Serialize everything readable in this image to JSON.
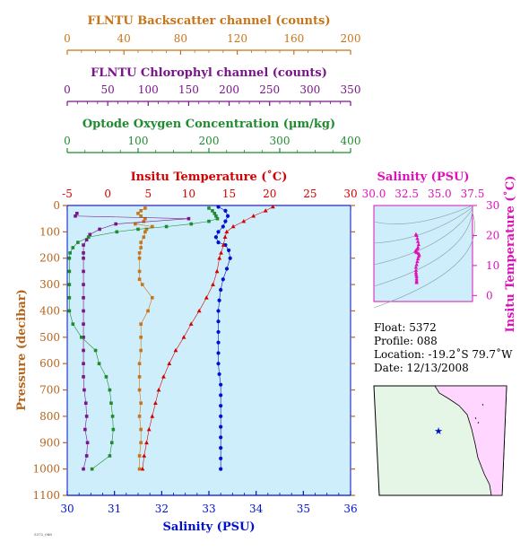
{
  "colors": {
    "backscatter": "#c87418",
    "chlorophyll": "#7a148a",
    "oxygen": "#1f8a2e",
    "temperature": "#d40000",
    "salinity": "#0010d0",
    "pressure": "#b5651d",
    "ts_accent": "#e010b8",
    "plot_bg": "#cdeefa",
    "map_land": "#ffd6ff",
    "map_ocean": "#e6f6e6"
  },
  "axes": {
    "backscatter": {
      "title": "FLNTU Backscatter channel (counts)",
      "ticks": [
        "0",
        "40",
        "80",
        "120",
        "160",
        "200"
      ]
    },
    "chlorophyll": {
      "title": "FLNTU Chlorophyl channel (counts)",
      "ticks": [
        "0",
        "50",
        "100",
        "150",
        "200",
        "250",
        "300",
        "350"
      ]
    },
    "oxygen": {
      "title": "Optode Oxygen Concentration (µm/kg)",
      "ticks": [
        "0",
        "100",
        "200",
        "300",
        "400"
      ]
    },
    "temperature": {
      "title": "Insitu Temperature (˚C)",
      "ticks": [
        "-5",
        "0",
        "5",
        "10",
        "15",
        "20",
        "25",
        "30"
      ]
    },
    "salinity": {
      "title": "Salinity (PSU)",
      "ticks": [
        "30",
        "31",
        "32",
        "33",
        "34",
        "35",
        "36"
      ]
    },
    "pressure": {
      "title": "Pressure (decibar)",
      "ticks": [
        "0",
        "100",
        "200",
        "300",
        "400",
        "500",
        "600",
        "700",
        "800",
        "900",
        "1000",
        "1100"
      ]
    },
    "ts_salinity": {
      "title": "Salinity (PSU)",
      "ticks": [
        "30.0",
        "32.5",
        "35.0",
        "37.5"
      ]
    },
    "ts_temperature": {
      "title": "Insitu Temperature (˚C)",
      "ticks": [
        "0",
        "10",
        "20",
        "30"
      ]
    }
  },
  "info": {
    "float": "Float:  5372",
    "profile": "Profile:  088",
    "location": "Location:  -19.2˚S  79.7˚W",
    "date": "Date:  12/13/2008"
  },
  "footer_tag": "5372_088",
  "map": {
    "marker_icon": "star-icon"
  },
  "chart_data": [
    {
      "type": "scatter",
      "title": "",
      "ylabel": "Pressure (decibar)",
      "ylim": [
        1100,
        0
      ],
      "grid": false,
      "series": [
        {
          "name": "Salinity (PSU)",
          "x_axis": "salinity",
          "xlim": [
            30,
            36
          ],
          "marker": "circle",
          "points": [
            [
              33.2,
              5
            ],
            [
              33.35,
              20
            ],
            [
              33.4,
              40
            ],
            [
              33.35,
              60
            ],
            [
              33.3,
              80
            ],
            [
              33.2,
              100
            ],
            [
              33.15,
              120
            ],
            [
              33.2,
              140
            ],
            [
              33.35,
              150
            ],
            [
              33.42,
              170
            ],
            [
              33.45,
              200
            ],
            [
              33.38,
              240
            ],
            [
              33.3,
              280
            ],
            [
              33.25,
              320
            ],
            [
              33.22,
              360
            ],
            [
              33.2,
              400
            ],
            [
              33.2,
              440
            ],
            [
              33.2,
              480
            ],
            [
              33.2,
              520
            ],
            [
              33.2,
              560
            ],
            [
              33.2,
              600
            ],
            [
              33.22,
              640
            ],
            [
              33.25,
              680
            ],
            [
              33.25,
              720
            ],
            [
              33.25,
              760
            ],
            [
              33.25,
              800
            ],
            [
              33.25,
              840
            ],
            [
              33.25,
              880
            ],
            [
              33.25,
              920
            ],
            [
              33.25,
              960
            ],
            [
              33.25,
              1000
            ]
          ]
        },
        {
          "name": "Insitu Temperature (˚C)",
          "x_axis": "temperature",
          "xlim": [
            -5,
            30
          ],
          "marker": "triangle",
          "points": [
            [
              20.4,
              5
            ],
            [
              19.5,
              20
            ],
            [
              18,
              40
            ],
            [
              16.8,
              60
            ],
            [
              15.5,
              80
            ],
            [
              14.7,
              100
            ],
            [
              14.5,
              120
            ],
            [
              14.3,
              150
            ],
            [
              14,
              180
            ],
            [
              13.8,
              200
            ],
            [
              13.5,
              250
            ],
            [
              13,
              300
            ],
            [
              12.2,
              350
            ],
            [
              11.3,
              400
            ],
            [
              10.3,
              450
            ],
            [
              9.4,
              500
            ],
            [
              8.4,
              550
            ],
            [
              7.6,
              600
            ],
            [
              6.9,
              650
            ],
            [
              6.3,
              700
            ],
            [
              5.9,
              750
            ],
            [
              5.5,
              800
            ],
            [
              5.1,
              850
            ],
            [
              4.8,
              900
            ],
            [
              4.5,
              950
            ],
            [
              4.3,
              1000
            ]
          ]
        },
        {
          "name": "FLNTU Backscatter channel (counts)",
          "x_axis": "backscatter",
          "xlim": [
            0,
            200
          ],
          "marker": "square",
          "points": [
            [
              55,
              10
            ],
            [
              52,
              20
            ],
            [
              50,
              30
            ],
            [
              52,
              40
            ],
            [
              55,
              50
            ],
            [
              54,
              60
            ],
            [
              48,
              70
            ],
            [
              60,
              80
            ],
            [
              56,
              90
            ],
            [
              55,
              100
            ],
            [
              54,
              120
            ],
            [
              52,
              140
            ],
            [
              52,
              160
            ],
            [
              51,
              180
            ],
            [
              51,
              200
            ],
            [
              51,
              250
            ],
            [
              51,
              280
            ],
            [
              53,
              300
            ],
            [
              60,
              350
            ],
            [
              57,
              400
            ],
            [
              52,
              450
            ],
            [
              52,
              500
            ],
            [
              52,
              550
            ],
            [
              51,
              600
            ],
            [
              51,
              650
            ],
            [
              51,
              700
            ],
            [
              52,
              750
            ],
            [
              51,
              800
            ],
            [
              52,
              850
            ],
            [
              52,
              900
            ],
            [
              51,
              950
            ],
            [
              51,
              1000
            ]
          ]
        },
        {
          "name": "FLNTU Chlorophyl channel (counts)",
          "x_axis": "chlorophyll",
          "xlim": [
            0,
            350
          ],
          "marker": "square",
          "points": [
            [
              12,
              30
            ],
            [
              10,
              40
            ],
            [
              150,
              50
            ],
            [
              60,
              70
            ],
            [
              40,
              90
            ],
            [
              28,
              110
            ],
            [
              24,
              130
            ],
            [
              20,
              150
            ],
            [
              20,
              180
            ],
            [
              20,
              200
            ],
            [
              20,
              250
            ],
            [
              20,
              300
            ],
            [
              20,
              350
            ],
            [
              20,
              400
            ],
            [
              20,
              450
            ],
            [
              20,
              500
            ],
            [
              20,
              550
            ],
            [
              20,
              600
            ],
            [
              20,
              650
            ],
            [
              21,
              700
            ],
            [
              23,
              750
            ],
            [
              24,
              800
            ],
            [
              22,
              850
            ],
            [
              25,
              900
            ],
            [
              24,
              950
            ],
            [
              20,
              1000
            ]
          ]
        },
        {
          "name": "Optode Oxygen Concentration (µm/kg)",
          "x_axis": "oxygen",
          "xlim": [
            0,
            400
          ],
          "marker": "square",
          "points": [
            [
              200,
              10
            ],
            [
              205,
              20
            ],
            [
              208,
              30
            ],
            [
              210,
              40
            ],
            [
              212,
              50
            ],
            [
              200,
              60
            ],
            [
              175,
              70
            ],
            [
              140,
              80
            ],
            [
              100,
              90
            ],
            [
              70,
              100
            ],
            [
              30,
              120
            ],
            [
              15,
              140
            ],
            [
              8,
              160
            ],
            [
              4,
              180
            ],
            [
              3,
              200
            ],
            [
              3,
              250
            ],
            [
              3,
              300
            ],
            [
              3,
              350
            ],
            [
              3,
              400
            ],
            [
              8,
              450
            ],
            [
              20,
              500
            ],
            [
              40,
              550
            ],
            [
              45,
              600
            ],
            [
              55,
              650
            ],
            [
              60,
              700
            ],
            [
              62,
              750
            ],
            [
              64,
              800
            ],
            [
              65,
              850
            ],
            [
              63,
              900
            ],
            [
              60,
              950
            ],
            [
              35,
              1000
            ]
          ]
        }
      ]
    },
    {
      "type": "scatter",
      "title": "",
      "xlabel": "Salinity (PSU)",
      "ylabel": "Insitu Temperature (˚C)",
      "xlim": [
        30,
        37.5
      ],
      "ylim": [
        -2,
        30
      ],
      "series": [
        {
          "name": "",
          "points": [
            [
              33.2,
              20.4
            ],
            [
              33.25,
              20
            ],
            [
              33.3,
              19
            ],
            [
              33.35,
              18
            ],
            [
              33.4,
              17
            ],
            [
              33.35,
              16
            ],
            [
              33.3,
              15.5
            ],
            [
              33.2,
              15
            ],
            [
              33.15,
              14.7
            ],
            [
              33.25,
              14.3
            ],
            [
              33.4,
              14
            ],
            [
              33.45,
              13.5
            ],
            [
              33.4,
              13
            ],
            [
              33.35,
              12.2
            ],
            [
              33.3,
              11.3
            ],
            [
              33.25,
              10.3
            ],
            [
              33.2,
              9.4
            ],
            [
              33.2,
              8.4
            ],
            [
              33.2,
              7.6
            ],
            [
              33.22,
              6.9
            ],
            [
              33.25,
              6.3
            ],
            [
              33.25,
              5.5
            ],
            [
              33.25,
              4.8
            ],
            [
              33.25,
              4.3
            ]
          ]
        }
      ]
    }
  ]
}
